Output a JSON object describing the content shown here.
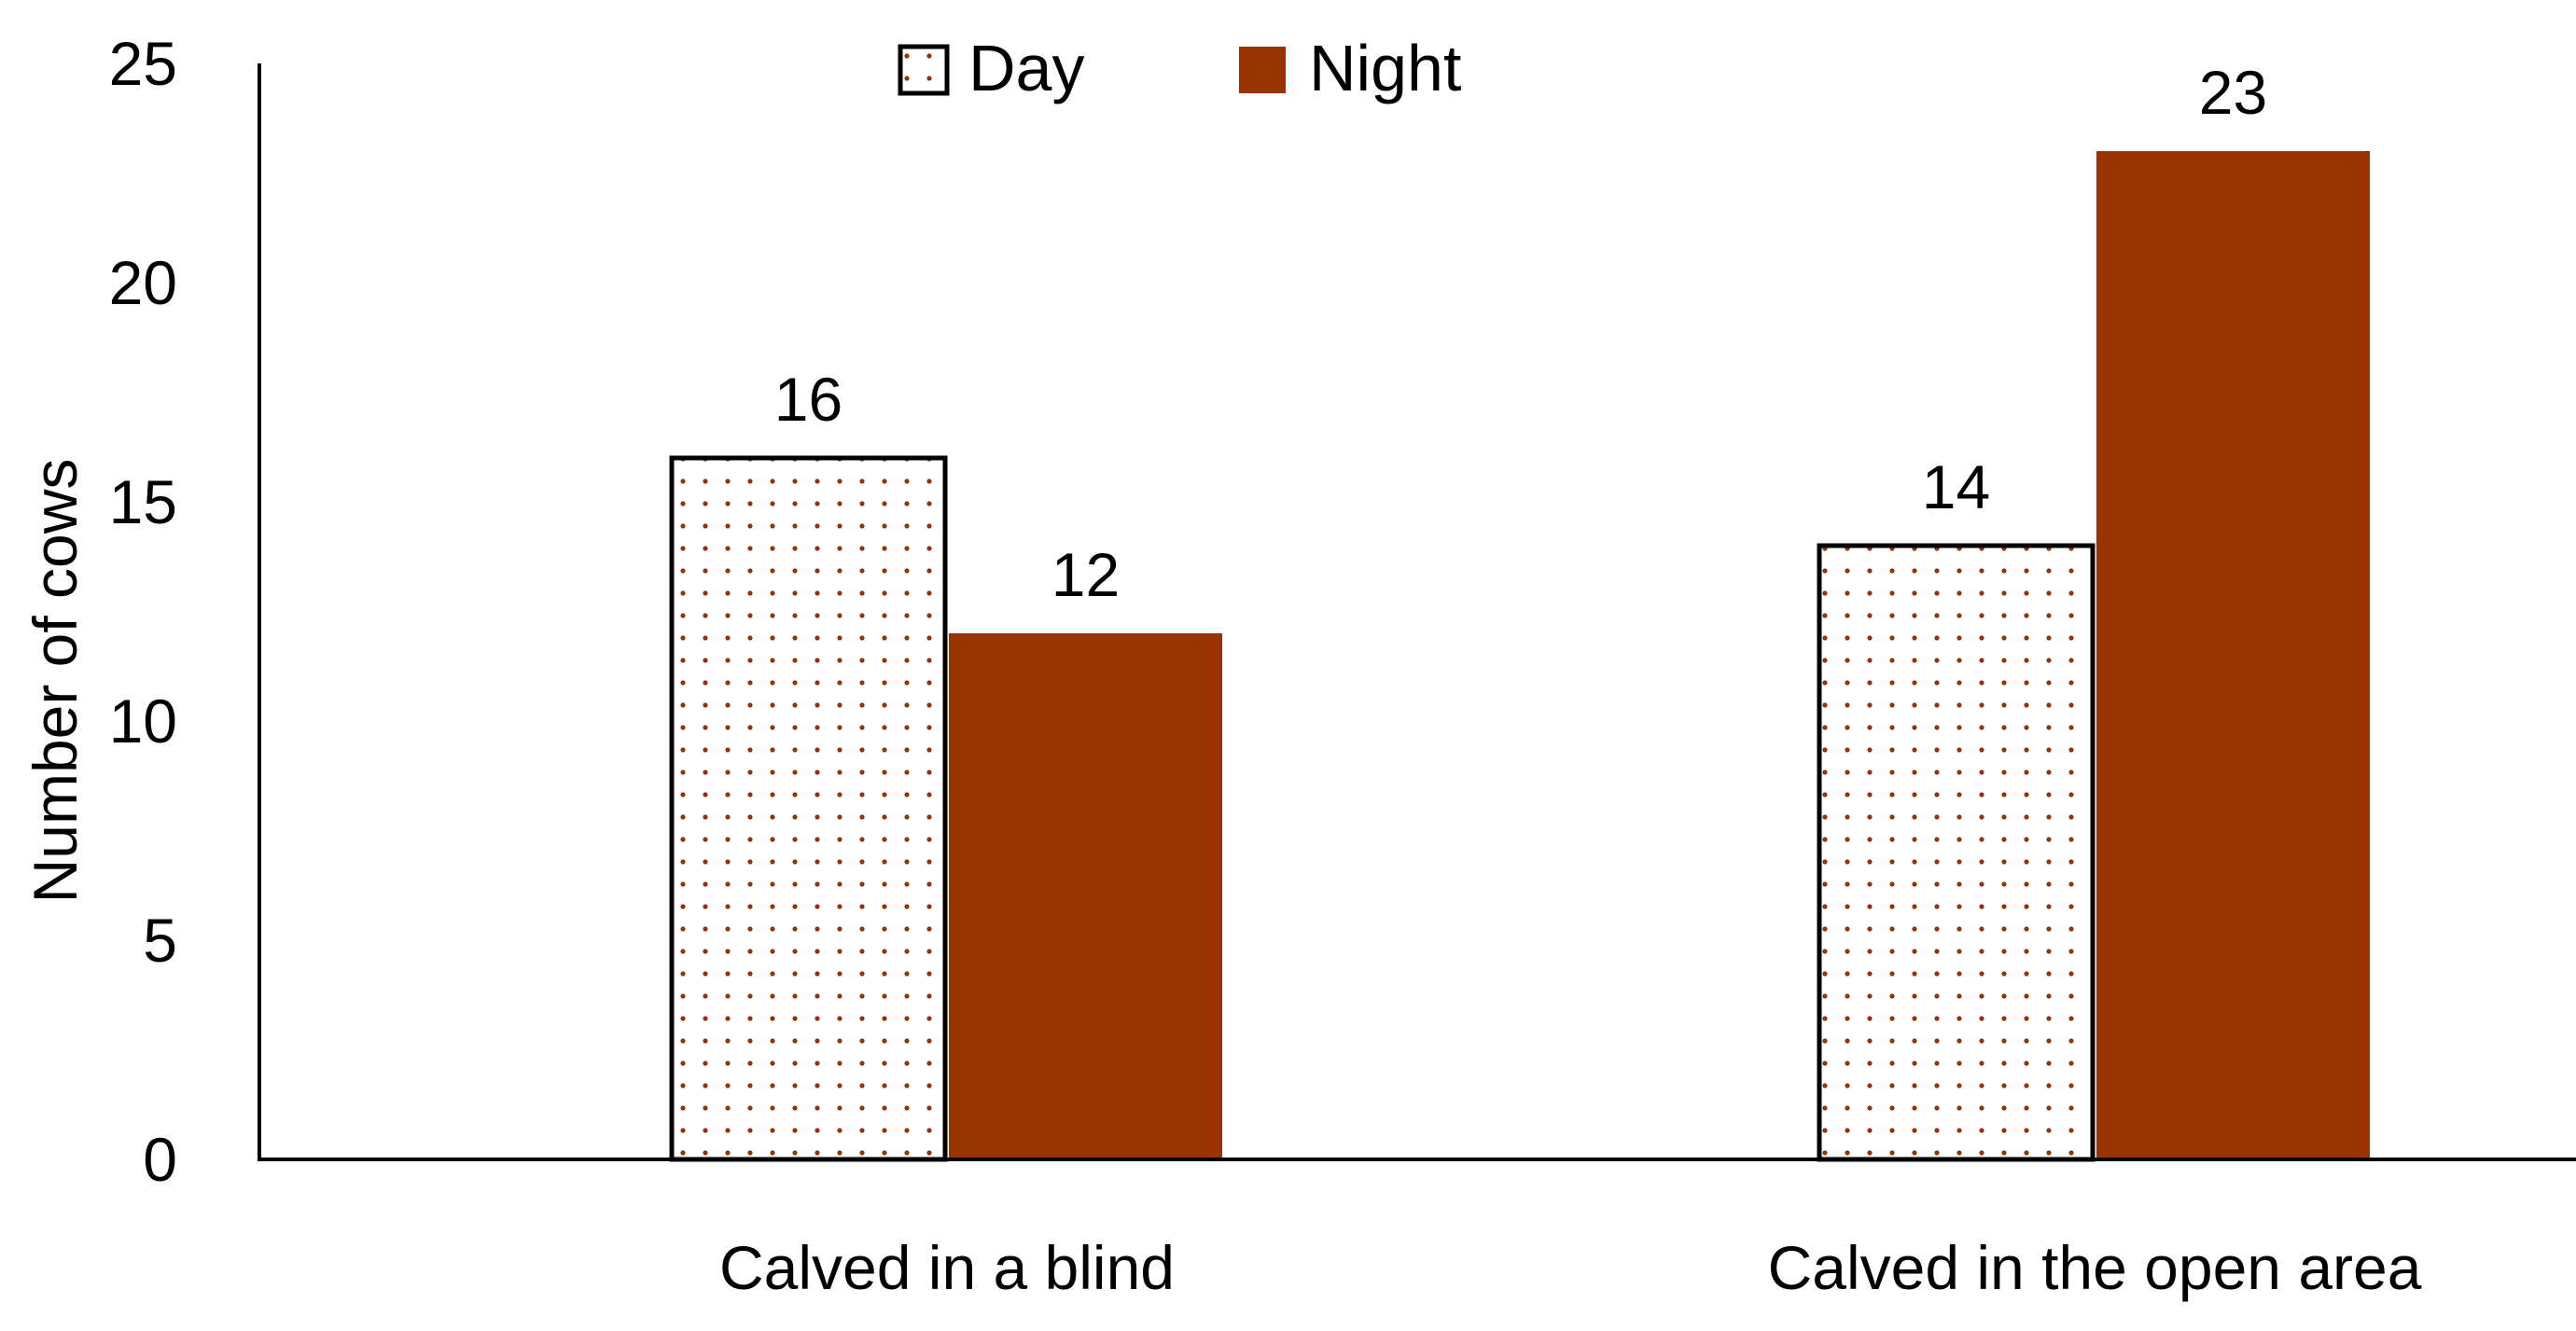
{
  "chart_data": {
    "type": "bar",
    "categories": [
      "Calved in a blind",
      "Calved in the open area"
    ],
    "series": [
      {
        "name": "Day",
        "values": [
          16,
          14
        ],
        "fill": "pattern-dots",
        "dot_color": "#993300",
        "stroke": "#000000"
      },
      {
        "name": "Night",
        "values": [
          12,
          23
        ],
        "fill": "#993300"
      }
    ],
    "xlabel": "",
    "ylabel": "Number of cows",
    "ylim": [
      0,
      25
    ],
    "yticks": [
      0,
      5,
      10,
      15,
      20,
      25
    ],
    "grid": false,
    "legend": "top-center",
    "data_labels": true
  }
}
